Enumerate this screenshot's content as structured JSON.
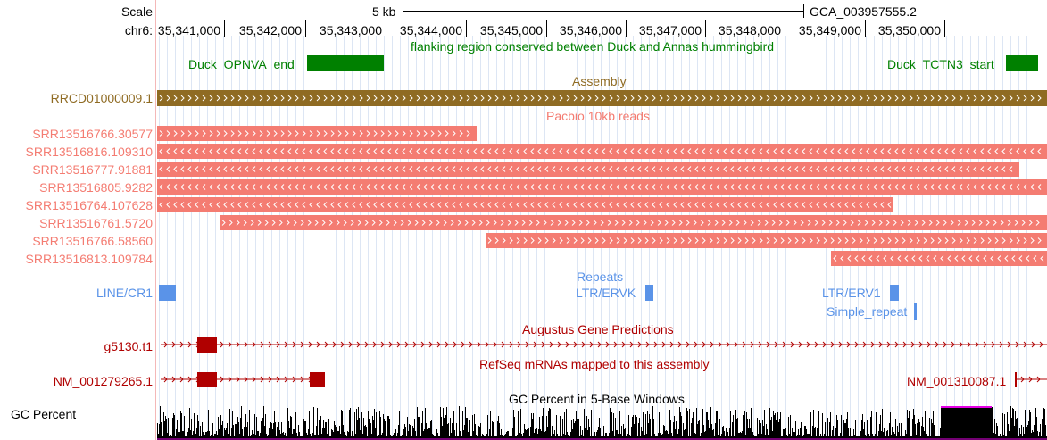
{
  "scale": {
    "label": "Scale",
    "bar_text": "5 kb",
    "assembly": "GCA_003957555.2"
  },
  "ruler": {
    "chrom_label": "chr6:",
    "ticks": [
      "35,341,000",
      "35,342,000",
      "35,343,000",
      "35,344,000",
      "35,345,000",
      "35,346,000",
      "35,347,000",
      "35,348,000",
      "35,349,000",
      "35,350,000"
    ]
  },
  "conserved": {
    "title": "flanking region conserved between Duck and Annas hummingbird",
    "left_label": "Duck_OPNVA_end",
    "right_label": "Duck_TCTN3_start",
    "color": "#008000"
  },
  "assembly": {
    "title": "Assembly",
    "name": "RRCD01000009.1",
    "color": "#8f6b23"
  },
  "reads": {
    "title": "Pacbio 10kb reads",
    "color": "#f47c72",
    "items": [
      {
        "name": "SRR13516766.30577"
      },
      {
        "name": "SRR13516816.109310"
      },
      {
        "name": "SRR13516777.91881"
      },
      {
        "name": "SRR13516805.9282"
      },
      {
        "name": "SRR13516764.107628"
      },
      {
        "name": "SRR13516761.5720"
      },
      {
        "name": "SRR13516766.58560"
      },
      {
        "name": "SRR13516813.109784"
      }
    ]
  },
  "repeats": {
    "title": "Repeats",
    "color": "#5a93e8",
    "line": "LINE/CR1",
    "ltr_ervk": "LTR/ERVK",
    "ltr_erv1": "LTR/ERV1",
    "simple": "Simple_repeat"
  },
  "augustus": {
    "title": "Augustus Gene Predictions",
    "gene": "g5130.t1",
    "color": "#b00000"
  },
  "refseq": {
    "title": "RefSeq mRNAs mapped to this assembly",
    "left": "NM_001279265.1",
    "right": "NM_001310087.1",
    "color": "#b00000"
  },
  "gc": {
    "title": "GC Percent in 5-Base Windows",
    "label": "GC Percent"
  }
}
